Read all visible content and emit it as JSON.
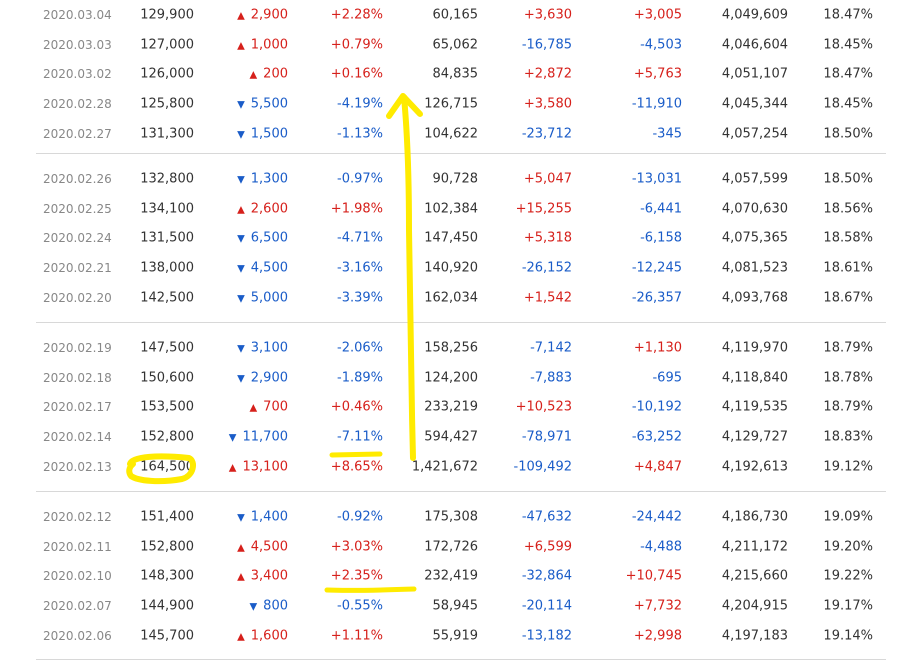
{
  "groups": [
    [
      {
        "date": "2020.03.04",
        "close": "129,900",
        "dir": "up",
        "change": "2,900",
        "rate": "+2.28%",
        "volume": "60,165",
        "inst": "+3,630",
        "foreign": "+3,005",
        "holdings": "4,049,609",
        "ratio": "18.47%"
      },
      {
        "date": "2020.03.03",
        "close": "127,000",
        "dir": "up",
        "change": "1,000",
        "rate": "+0.79%",
        "volume": "65,062",
        "inst": "-16,785",
        "foreign": "-4,503",
        "holdings": "4,046,604",
        "ratio": "18.45%"
      },
      {
        "date": "2020.03.02",
        "close": "126,000",
        "dir": "up",
        "change": "200",
        "rate": "+0.16%",
        "volume": "84,835",
        "inst": "+2,872",
        "foreign": "+5,763",
        "holdings": "4,051,107",
        "ratio": "18.47%"
      },
      {
        "date": "2020.02.28",
        "close": "125,800",
        "dir": "down",
        "change": "5,500",
        "rate": "-4.19%",
        "volume": "126,715",
        "inst": "+3,580",
        "foreign": "-11,910",
        "holdings": "4,045,344",
        "ratio": "18.45%"
      },
      {
        "date": "2020.02.27",
        "close": "131,300",
        "dir": "down",
        "change": "1,500",
        "rate": "-1.13%",
        "volume": "104,622",
        "inst": "-23,712",
        "foreign": "-345",
        "holdings": "4,057,254",
        "ratio": "18.50%"
      }
    ],
    [
      {
        "date": "2020.02.26",
        "close": "132,800",
        "dir": "down",
        "change": "1,300",
        "rate": "-0.97%",
        "volume": "90,728",
        "inst": "+5,047",
        "foreign": "-13,031",
        "holdings": "4,057,599",
        "ratio": "18.50%"
      },
      {
        "date": "2020.02.25",
        "close": "134,100",
        "dir": "up",
        "change": "2,600",
        "rate": "+1.98%",
        "volume": "102,384",
        "inst": "+15,255",
        "foreign": "-6,441",
        "holdings": "4,070,630",
        "ratio": "18.56%"
      },
      {
        "date": "2020.02.24",
        "close": "131,500",
        "dir": "down",
        "change": "6,500",
        "rate": "-4.71%",
        "volume": "147,450",
        "inst": "+5,318",
        "foreign": "-6,158",
        "holdings": "4,075,365",
        "ratio": "18.58%"
      },
      {
        "date": "2020.02.21",
        "close": "138,000",
        "dir": "down",
        "change": "4,500",
        "rate": "-3.16%",
        "volume": "140,920",
        "inst": "-26,152",
        "foreign": "-12,245",
        "holdings": "4,081,523",
        "ratio": "18.61%"
      },
      {
        "date": "2020.02.20",
        "close": "142,500",
        "dir": "down",
        "change": "5,000",
        "rate": "-3.39%",
        "volume": "162,034",
        "inst": "+1,542",
        "foreign": "-26,357",
        "holdings": "4,093,768",
        "ratio": "18.67%"
      }
    ],
    [
      {
        "date": "2020.02.19",
        "close": "147,500",
        "dir": "down",
        "change": "3,100",
        "rate": "-2.06%",
        "volume": "158,256",
        "inst": "-7,142",
        "foreign": "+1,130",
        "holdings": "4,119,970",
        "ratio": "18.79%"
      },
      {
        "date": "2020.02.18",
        "close": "150,600",
        "dir": "down",
        "change": "2,900",
        "rate": "-1.89%",
        "volume": "124,200",
        "inst": "-7,883",
        "foreign": "-695",
        "holdings": "4,118,840",
        "ratio": "18.78%"
      },
      {
        "date": "2020.02.17",
        "close": "153,500",
        "dir": "up",
        "change": "700",
        "rate": "+0.46%",
        "volume": "233,219",
        "inst": "+10,523",
        "foreign": "-10,192",
        "holdings": "4,119,535",
        "ratio": "18.79%"
      },
      {
        "date": "2020.02.14",
        "close": "152,800",
        "dir": "down",
        "change": "11,700",
        "rate": "-7.11%",
        "volume": "594,427",
        "inst": "-78,971",
        "foreign": "-63,252",
        "holdings": "4,129,727",
        "ratio": "18.83%"
      },
      {
        "date": "2020.02.13",
        "close": "164,500",
        "dir": "up",
        "change": "13,100",
        "rate": "+8.65%",
        "volume": "1,421,672",
        "inst": "-109,492",
        "foreign": "+4,847",
        "holdings": "4,192,613",
        "ratio": "19.12%"
      }
    ],
    [
      {
        "date": "2020.02.12",
        "close": "151,400",
        "dir": "down",
        "change": "1,400",
        "rate": "-0.92%",
        "volume": "175,308",
        "inst": "-47,632",
        "foreign": "-24,442",
        "holdings": "4,186,730",
        "ratio": "19.09%"
      },
      {
        "date": "2020.02.11",
        "close": "152,800",
        "dir": "up",
        "change": "4,500",
        "rate": "+3.03%",
        "volume": "172,726",
        "inst": "+6,599",
        "foreign": "-4,488",
        "holdings": "4,211,172",
        "ratio": "19.20%"
      },
      {
        "date": "2020.02.10",
        "close": "148,300",
        "dir": "up",
        "change": "3,400",
        "rate": "+2.35%",
        "volume": "232,419",
        "inst": "-32,864",
        "foreign": "+10,745",
        "holdings": "4,215,660",
        "ratio": "19.22%"
      },
      {
        "date": "2020.02.07",
        "close": "144,900",
        "dir": "down",
        "change": "800",
        "rate": "-0.55%",
        "volume": "58,945",
        "inst": "-20,114",
        "foreign": "+7,732",
        "holdings": "4,204,915",
        "ratio": "19.17%"
      },
      {
        "date": "2020.02.06",
        "close": "145,700",
        "dir": "up",
        "change": "1,600",
        "rate": "+1.11%",
        "volume": "55,919",
        "inst": "-13,182",
        "foreign": "+2,998",
        "holdings": "4,197,183",
        "ratio": "19.14%"
      }
    ]
  ],
  "colors": {
    "up": "#d6201b",
    "down": "#1a5cc8",
    "annotation": "#ffeb00"
  },
  "icons": {
    "up": "triangle-up-icon",
    "down": "triangle-down-icon"
  }
}
